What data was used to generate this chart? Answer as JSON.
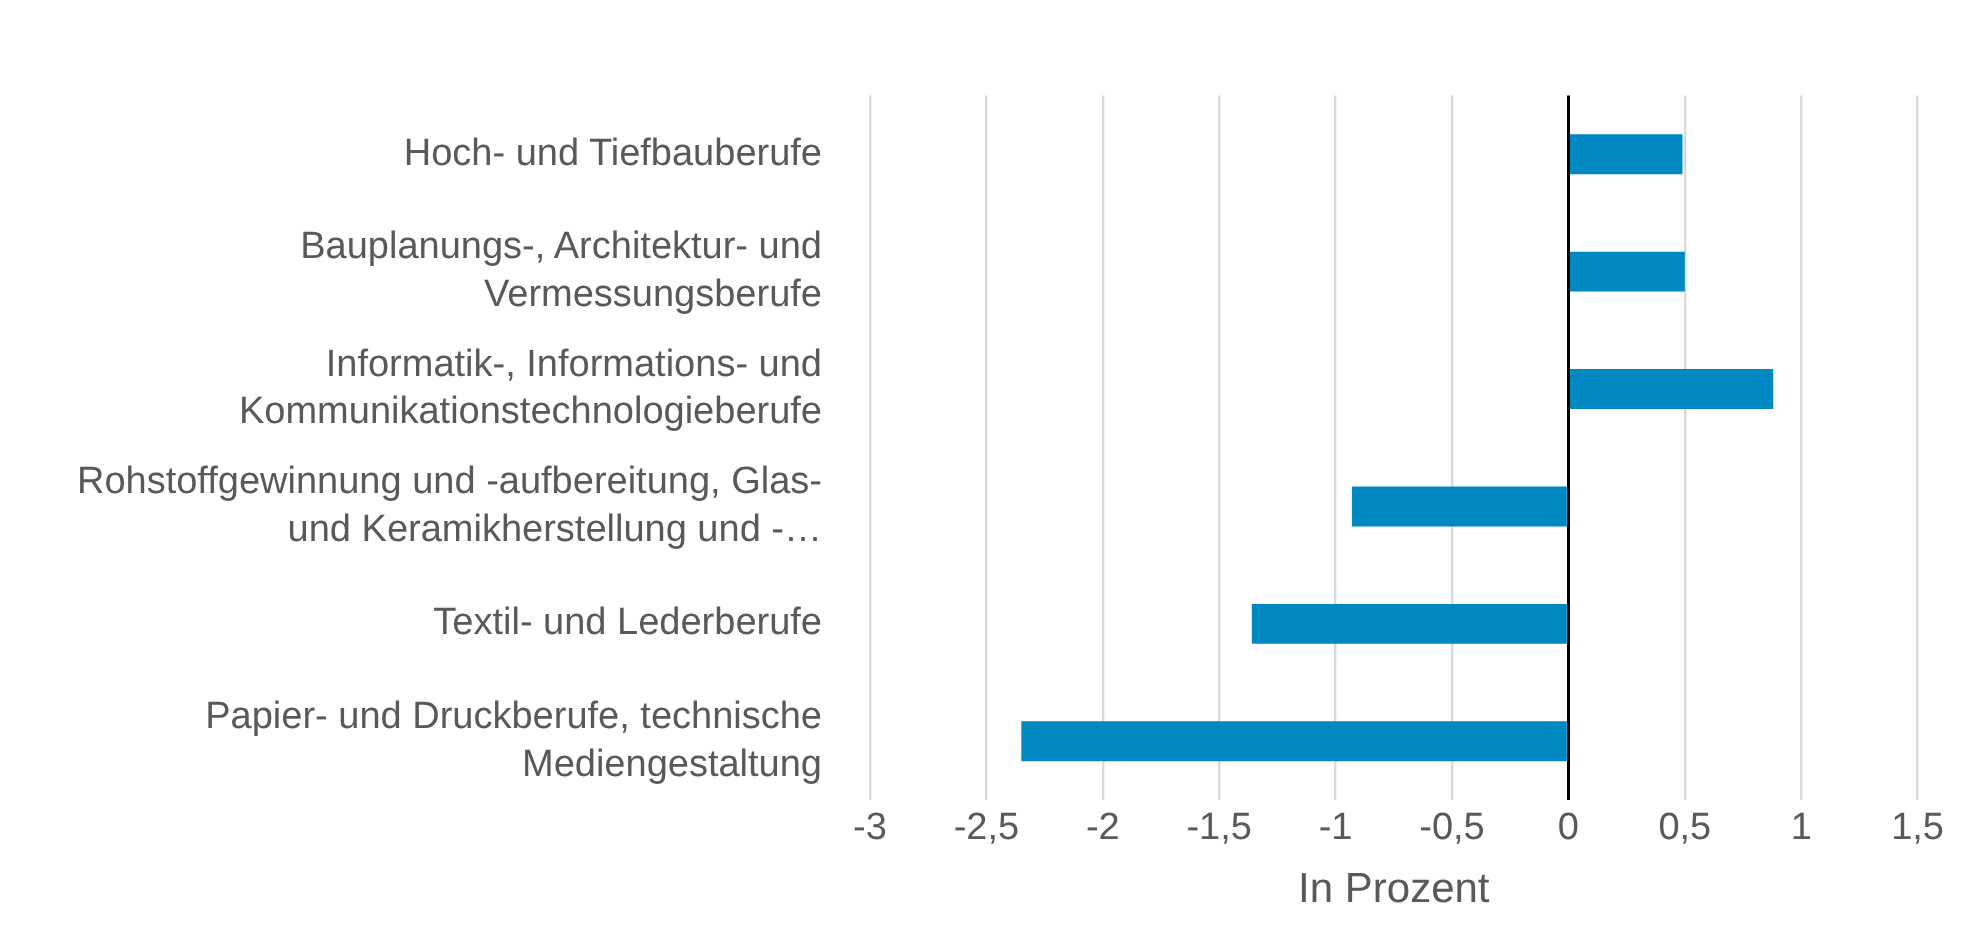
{
  "chart_data": {
    "type": "bar",
    "orientation": "horizontal",
    "xlabel": "In Prozent",
    "categories": [
      "Hoch- und Tiefbauberufe",
      "Bauplanungs-, Architektur- und Vermessungsberufe",
      "Informatik-, Informations- und Kommunikationstechnologieberufe",
      "Rohstoffgewinnung und -aufbereitung, Glas- und Keramikherstellung und -…",
      "Textil- und Lederberufe",
      "Papier- und Druckberufe, technische Mediengestaltung"
    ],
    "values": [
      0.49,
      0.5,
      0.88,
      -0.93,
      -1.36,
      -2.35
    ],
    "color": "#0088c2",
    "xlim": [
      -3,
      1.5
    ],
    "xticks": [
      {
        "value": -3,
        "label": "-3"
      },
      {
        "value": -2.5,
        "label": "-2,5"
      },
      {
        "value": -2,
        "label": "-2"
      },
      {
        "value": -1.5,
        "label": "-1,5"
      },
      {
        "value": -1,
        "label": "-1"
      },
      {
        "value": -0.5,
        "label": "-0,5"
      },
      {
        "value": 0,
        "label": "0"
      },
      {
        "value": 0.5,
        "label": "0,5"
      },
      {
        "value": 1,
        "label": "1"
      },
      {
        "value": 1.5,
        "label": "1,5"
      }
    ],
    "grid": "x"
  }
}
